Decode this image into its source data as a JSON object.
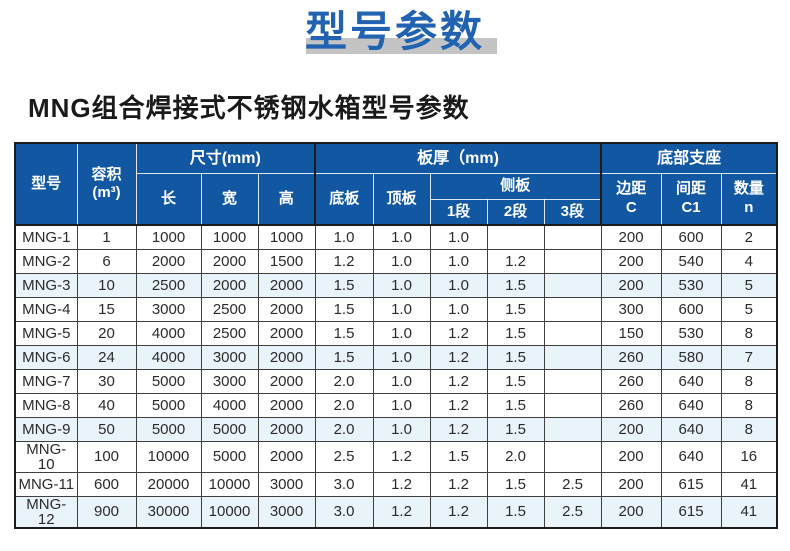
{
  "page": {
    "title": "型号参数",
    "subtitle": "MNG组合焊接式不锈钢水箱型号参数"
  },
  "colors": {
    "header_blue": "#1157a2",
    "title_blue": "#2163b0",
    "title_bar_gray": "#c4c4c4",
    "row_highlight_blue": "#e9f3fa"
  },
  "table": {
    "header": {
      "model": "型号",
      "volume": "容积\n(m³)",
      "size_group": "尺寸(mm)",
      "length": "长",
      "width": "宽",
      "height": "高",
      "thickness_group": "板厚（mm)",
      "bottom_plate": "底板",
      "top_plate": "顶板",
      "side_group": "侧板",
      "seg1": "1段",
      "seg2": "2段",
      "seg3": "3段",
      "support_group": "底部支座",
      "edge_c": "边距\nC",
      "spacing_c1": "间距\nC1",
      "count_n": "数量\nn"
    },
    "columns_order": [
      "model",
      "volume",
      "length",
      "width",
      "height",
      "bottom_plate",
      "top_plate",
      "seg1",
      "seg2",
      "seg3",
      "edge_c",
      "spacing_c1",
      "count_n"
    ],
    "rows": [
      {
        "model": "MNG-1",
        "volume": "1",
        "length": "1000",
        "width": "1000",
        "height": "1000",
        "bottom_plate": "1.0",
        "top_plate": "1.0",
        "seg1": "1.0",
        "seg2": "",
        "seg3": "",
        "edge_c": "200",
        "spacing_c1": "600",
        "count_n": "2"
      },
      {
        "model": "MNG-2",
        "volume": "6",
        "length": "2000",
        "width": "2000",
        "height": "1500",
        "bottom_plate": "1.2",
        "top_plate": "1.0",
        "seg1": "1.0",
        "seg2": "1.2",
        "seg3": "",
        "edge_c": "200",
        "spacing_c1": "540",
        "count_n": "4"
      },
      {
        "model": "MNG-3",
        "volume": "10",
        "length": "2500",
        "width": "2000",
        "height": "2000",
        "bottom_plate": "1.5",
        "top_plate": "1.0",
        "seg1": "1.0",
        "seg2": "1.5",
        "seg3": "",
        "edge_c": "200",
        "spacing_c1": "530",
        "count_n": "5"
      },
      {
        "model": "MNG-4",
        "volume": "15",
        "length": "3000",
        "width": "2500",
        "height": "2000",
        "bottom_plate": "1.5",
        "top_plate": "1.0",
        "seg1": "1.0",
        "seg2": "1.5",
        "seg3": "",
        "edge_c": "300",
        "spacing_c1": "600",
        "count_n": "5"
      },
      {
        "model": "MNG-5",
        "volume": "20",
        "length": "4000",
        "width": "2500",
        "height": "2000",
        "bottom_plate": "1.5",
        "top_plate": "1.0",
        "seg1": "1.2",
        "seg2": "1.5",
        "seg3": "",
        "edge_c": "150",
        "spacing_c1": "530",
        "count_n": "8"
      },
      {
        "model": "MNG-6",
        "volume": "24",
        "length": "4000",
        "width": "3000",
        "height": "2000",
        "bottom_plate": "1.5",
        "top_plate": "1.0",
        "seg1": "1.2",
        "seg2": "1.5",
        "seg3": "",
        "edge_c": "260",
        "spacing_c1": "580",
        "count_n": "7"
      },
      {
        "model": "MNG-7",
        "volume": "30",
        "length": "5000",
        "width": "3000",
        "height": "2000",
        "bottom_plate": "2.0",
        "top_plate": "1.0",
        "seg1": "1.2",
        "seg2": "1.5",
        "seg3": "",
        "edge_c": "260",
        "spacing_c1": "640",
        "count_n": "8"
      },
      {
        "model": "MNG-8",
        "volume": "40",
        "length": "5000",
        "width": "4000",
        "height": "2000",
        "bottom_plate": "2.0",
        "top_plate": "1.0",
        "seg1": "1.2",
        "seg2": "1.5",
        "seg3": "",
        "edge_c": "260",
        "spacing_c1": "640",
        "count_n": "8"
      },
      {
        "model": "MNG-9",
        "volume": "50",
        "length": "5000",
        "width": "5000",
        "height": "2000",
        "bottom_plate": "2.0",
        "top_plate": "1.0",
        "seg1": "1.2",
        "seg2": "1.5",
        "seg3": "",
        "edge_c": "200",
        "spacing_c1": "640",
        "count_n": "8"
      },
      {
        "model": "MNG-10",
        "volume": "100",
        "length": "10000",
        "width": "5000",
        "height": "2000",
        "bottom_plate": "2.5",
        "top_plate": "1.2",
        "seg1": "1.5",
        "seg2": "2.0",
        "seg3": "",
        "edge_c": "200",
        "spacing_c1": "640",
        "count_n": "16"
      },
      {
        "model": "MNG-11",
        "volume": "600",
        "length": "20000",
        "width": "10000",
        "height": "3000",
        "bottom_plate": "3.0",
        "top_plate": "1.2",
        "seg1": "1.2",
        "seg2": "1.5",
        "seg3": "2.5",
        "edge_c": "200",
        "spacing_c1": "615",
        "count_n": "41"
      },
      {
        "model": "MNG-12",
        "volume": "900",
        "length": "30000",
        "width": "10000",
        "height": "3000",
        "bottom_plate": "3.0",
        "top_plate": "1.2",
        "seg1": "1.2",
        "seg2": "1.5",
        "seg3": "2.5",
        "edge_c": "200",
        "spacing_c1": "615",
        "count_n": "41"
      }
    ]
  }
}
